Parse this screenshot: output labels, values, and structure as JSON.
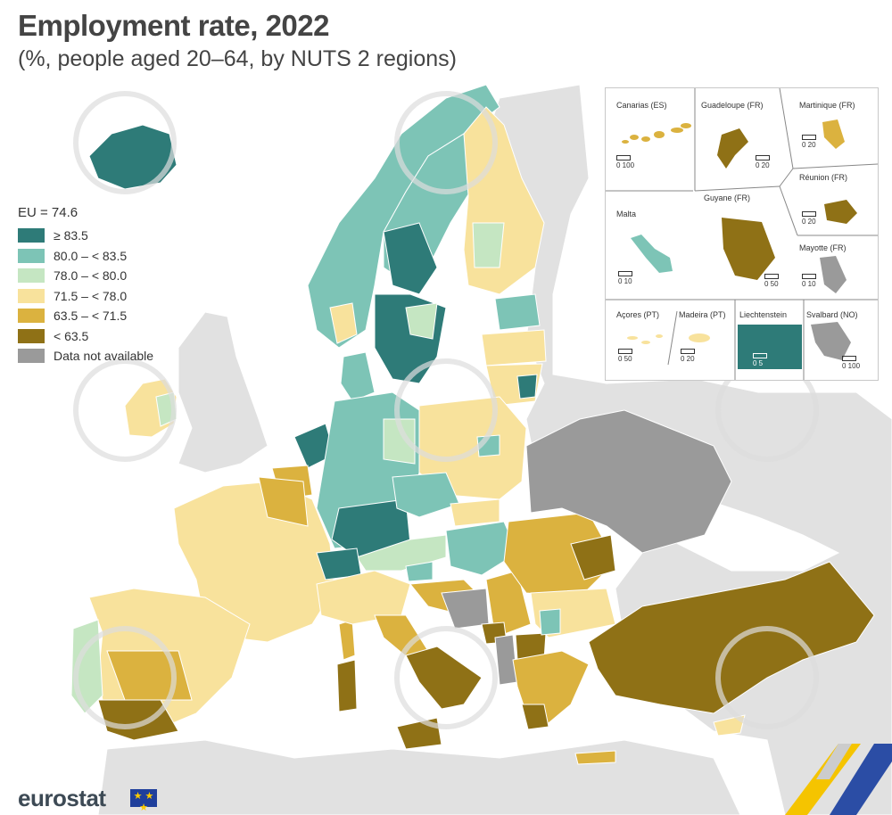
{
  "title": "Employment rate, 2022",
  "subtitle": "(%, people aged 20–64, by NUTS 2 regions)",
  "legend": {
    "eu_average": "EU = 74.6",
    "classes": [
      {
        "label": "≥ 83.5",
        "color": "#2e7b78"
      },
      {
        "label": "80.0 – < 83.5",
        "color": "#7dc4b6"
      },
      {
        "label": "78.0 – < 80.0",
        "color": "#c5e6c2"
      },
      {
        "label": "71.5 – < 78.0",
        "color": "#f8e29c"
      },
      {
        "label": "63.5 – < 71.5",
        "color": "#dbb23f"
      },
      {
        "label": "< 63.5",
        "color": "#8f7116"
      },
      {
        "label": "Data not available",
        "color": "#9a9a9a"
      }
    ]
  },
  "colors": {
    "sea": "#ffffff",
    "non_eu_land": "#e1e1e1",
    "border": "#4a4a4a"
  },
  "insets": {
    "canarias": {
      "label": "Canarias (ES)",
      "scale": "0   100"
    },
    "guadeloupe": {
      "label": "Guadeloupe (FR)",
      "scale": "0   20"
    },
    "martinique": {
      "label": "Martinique (FR)",
      "scale": "0   20"
    },
    "reunion": {
      "label": "Réunion (FR)",
      "scale": "0   20"
    },
    "malta": {
      "label": "Malta",
      "scale": "0   10"
    },
    "guyane": {
      "label": "Guyane (FR)",
      "scale": "0   50"
    },
    "mayotte": {
      "label": "Mayotte (FR)",
      "scale": "0   10"
    },
    "acores": {
      "label": "Açores (PT)",
      "scale": "0   50"
    },
    "madeira": {
      "label": "Madeira (PT)",
      "scale": "0   20"
    },
    "liechtenstein": {
      "label": "Liechtenstein",
      "scale": "0   5"
    },
    "svalbard": {
      "label": "Svalbard (NO)",
      "scale": "0 100"
    }
  },
  "brand": "eurostat",
  "flag_icon": "eu-flag-icon",
  "watermark_icon": "bta-watermark-icon"
}
